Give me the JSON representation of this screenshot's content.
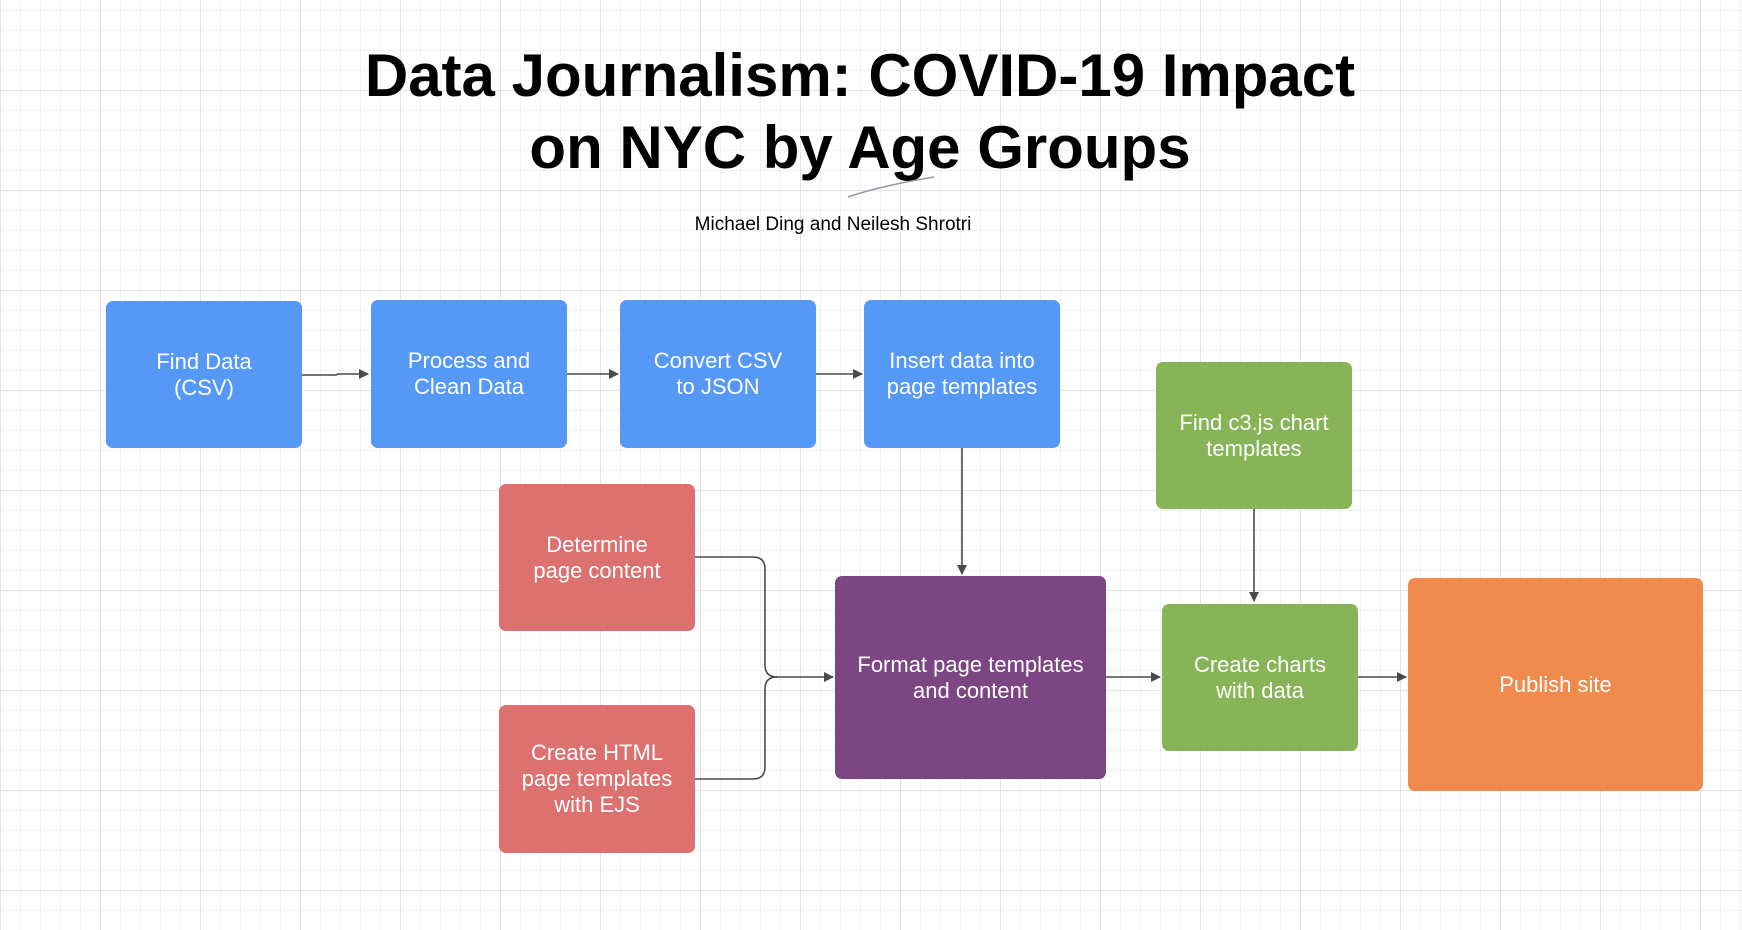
{
  "header": {
    "title_line_1": "Data Journalism: COVID-19 Impact",
    "title_line_2": "on NYC by Age Groups",
    "authors": "Michael Ding and Neilesh Shrotri"
  },
  "nodes": {
    "find_data": "Find Data\n(CSV)",
    "process_clean": "Process and\nClean Data",
    "convert_csv": "Convert CSV\nto JSON",
    "insert_data": "Insert data into\npage templates",
    "find_c3": "Find c3.js chart\ntemplates",
    "determine_content": "Determine\npage content",
    "create_html": "Create HTML\npage templates\nwith EJS",
    "format_templates": "Format page templates\nand content",
    "create_charts": "Create charts\nwith data",
    "publish_site": "Publish site"
  },
  "colors": {
    "data_steps": "#5598f5",
    "content_steps": "#dd7170",
    "format_step": "#7b4682",
    "chart_steps": "#86b456",
    "publish_step": "#f08b4d",
    "connector": "#4a4a4a"
  }
}
